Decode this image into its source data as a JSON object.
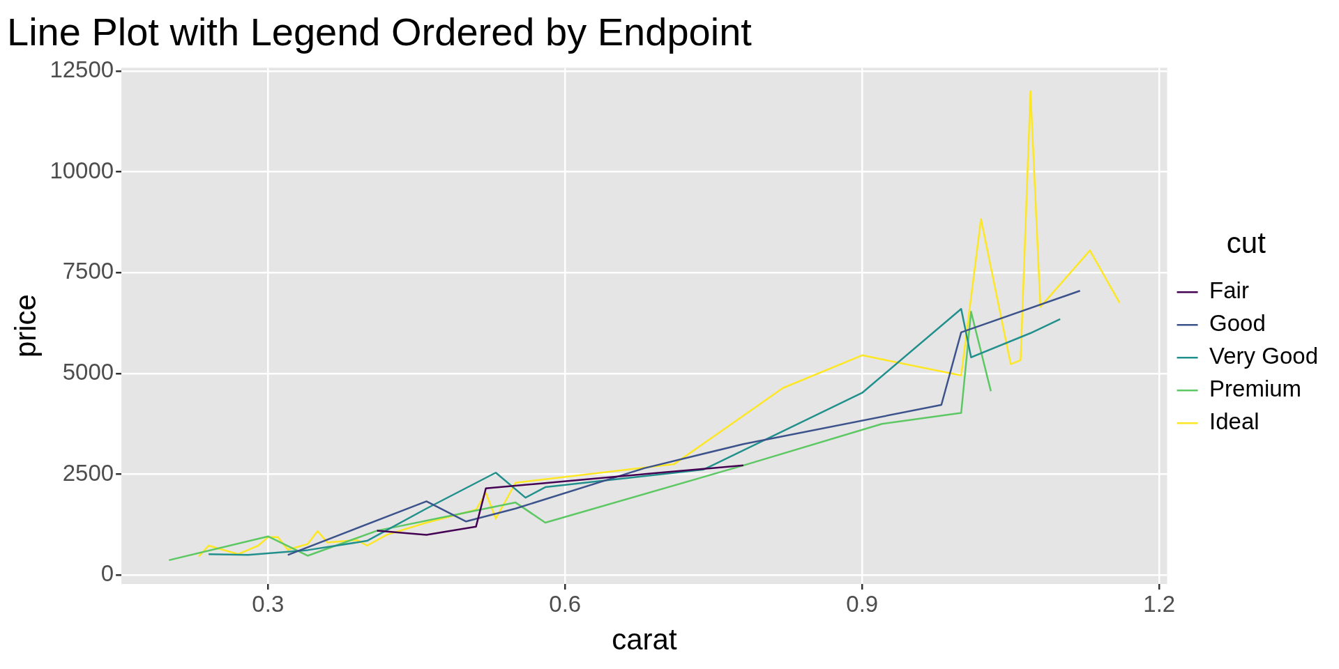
{
  "chart_data": {
    "type": "line",
    "title": "Line Plot with Legend Ordered by Endpoint",
    "xlabel": "carat",
    "ylabel": "price",
    "legend_title": "cut",
    "legend": "right",
    "grid": true,
    "marker": "none",
    "line_style": "solid",
    "xlim": [
      0.152,
      1.208
    ],
    "xticks": [
      0.3,
      0.6,
      0.9,
      1.2
    ],
    "ylim": [
      -220,
      12580
    ],
    "yticks": [
      0,
      2500,
      5000,
      7500,
      10000,
      12500
    ],
    "series": [
      {
        "name": "Fair",
        "color": "#440154",
        "x": [
          0.41,
          0.46,
          0.51,
          0.52,
          0.7,
          0.78
        ],
        "values": [
          1100,
          1000,
          1200,
          2150,
          2550,
          2720
        ]
      },
      {
        "name": "Good",
        "color": "#3b528b",
        "x": [
          0.32,
          0.46,
          0.5,
          0.55,
          0.68,
          0.78,
          0.98,
          1.0,
          1.12
        ],
        "values": [
          500,
          1830,
          1330,
          1650,
          2650,
          3250,
          4220,
          6020,
          7050
        ]
      },
      {
        "name": "Very Good",
        "color": "#21908c",
        "x": [
          0.24,
          0.28,
          0.34,
          0.4,
          0.46,
          0.53,
          0.56,
          0.58,
          0.74,
          0.9,
          1.0,
          1.01,
          1.07,
          1.1
        ],
        "values": [
          520,
          500,
          620,
          850,
          1650,
          2540,
          1920,
          2180,
          2620,
          4520,
          6600,
          5400,
          6000,
          6350
        ]
      },
      {
        "name": "Premium",
        "color": "#5dc863",
        "x": [
          0.2,
          0.3,
          0.34,
          0.41,
          0.5,
          0.55,
          0.58,
          0.78,
          0.92,
          1.0,
          1.01,
          1.03
        ],
        "values": [
          370,
          960,
          480,
          1100,
          1550,
          1800,
          1300,
          2720,
          3750,
          4020,
          6530,
          4560
        ]
      },
      {
        "name": "Ideal",
        "color": "#fde725",
        "x": [
          0.23,
          0.24,
          0.27,
          0.29,
          0.3,
          0.31,
          0.32,
          0.34,
          0.35,
          0.36,
          0.39,
          0.4,
          0.42,
          0.46,
          0.51,
          0.52,
          0.53,
          0.55,
          0.71,
          0.82,
          0.9,
          1.0,
          1.02,
          1.05,
          1.06,
          1.07,
          1.08,
          1.13,
          1.16
        ],
        "values": [
          460,
          730,
          520,
          730,
          940,
          940,
          630,
          770,
          1090,
          810,
          870,
          730,
          1000,
          1300,
          1620,
          2040,
          1400,
          2290,
          2750,
          4640,
          5450,
          4950,
          8830,
          5230,
          5330,
          12000,
          6650,
          8050,
          6750
        ]
      }
    ]
  }
}
